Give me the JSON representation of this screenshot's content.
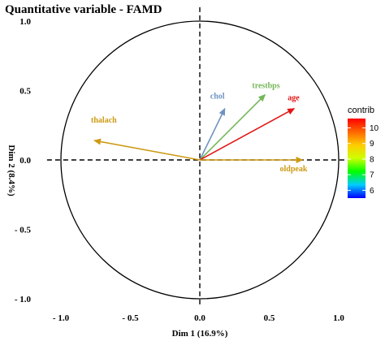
{
  "chart_data": {
    "type": "scatter",
    "subtype": "correlation-circle",
    "title": "Quantitative variable - FAMD",
    "xlabel": "Dim 1 (16.9%)",
    "ylabel": "Dim 2 (8.4%)",
    "xlim": [
      -1.0,
      1.0
    ],
    "ylim": [
      -1.0,
      1.0
    ],
    "x_ticks": [
      {
        "value": -1.0,
        "label": "- 1.0"
      },
      {
        "value": -0.5,
        "label": "- 0.5"
      },
      {
        "value": 0.0,
        "label": "0.0"
      },
      {
        "value": 0.5,
        "label": "0.5"
      },
      {
        "value": 1.0,
        "label": "1.0"
      }
    ],
    "y_ticks": [
      {
        "value": 1.0,
        "label": "1.0"
      },
      {
        "value": 0.5,
        "label": "0.5"
      },
      {
        "value": 0.0,
        "label": "0.0"
      },
      {
        "value": -0.5,
        "label": "- 0.5"
      },
      {
        "value": -1.0,
        "label": "- 1.0"
      }
    ],
    "grid": false,
    "variables": [
      {
        "name": "thalach",
        "x": -0.76,
        "y": 0.14,
        "color": "#CC9A14"
      },
      {
        "name": "chol",
        "x": 0.18,
        "y": 0.37,
        "color": "#6F93C0"
      },
      {
        "name": "trestbps",
        "x": 0.47,
        "y": 0.47,
        "color": "#75B759"
      },
      {
        "name": "age",
        "x": 0.68,
        "y": 0.37,
        "color": "#E21414"
      },
      {
        "name": "oldpeak",
        "x": 0.74,
        "y": 0.0,
        "color": "#CC9A14"
      }
    ],
    "legend": {
      "title": "contrib",
      "position": "right",
      "ticks": [
        "10",
        "9",
        "8",
        "7",
        "6"
      ],
      "tick_values": [
        10,
        9,
        8,
        7,
        6
      ],
      "range": [
        5.5,
        10.6
      ],
      "colors": [
        "#0000FF",
        "#00CCFF",
        "#00FF00",
        "#CCFF00",
        "#FFCC00",
        "#FF6600",
        "#FF0000"
      ]
    }
  }
}
